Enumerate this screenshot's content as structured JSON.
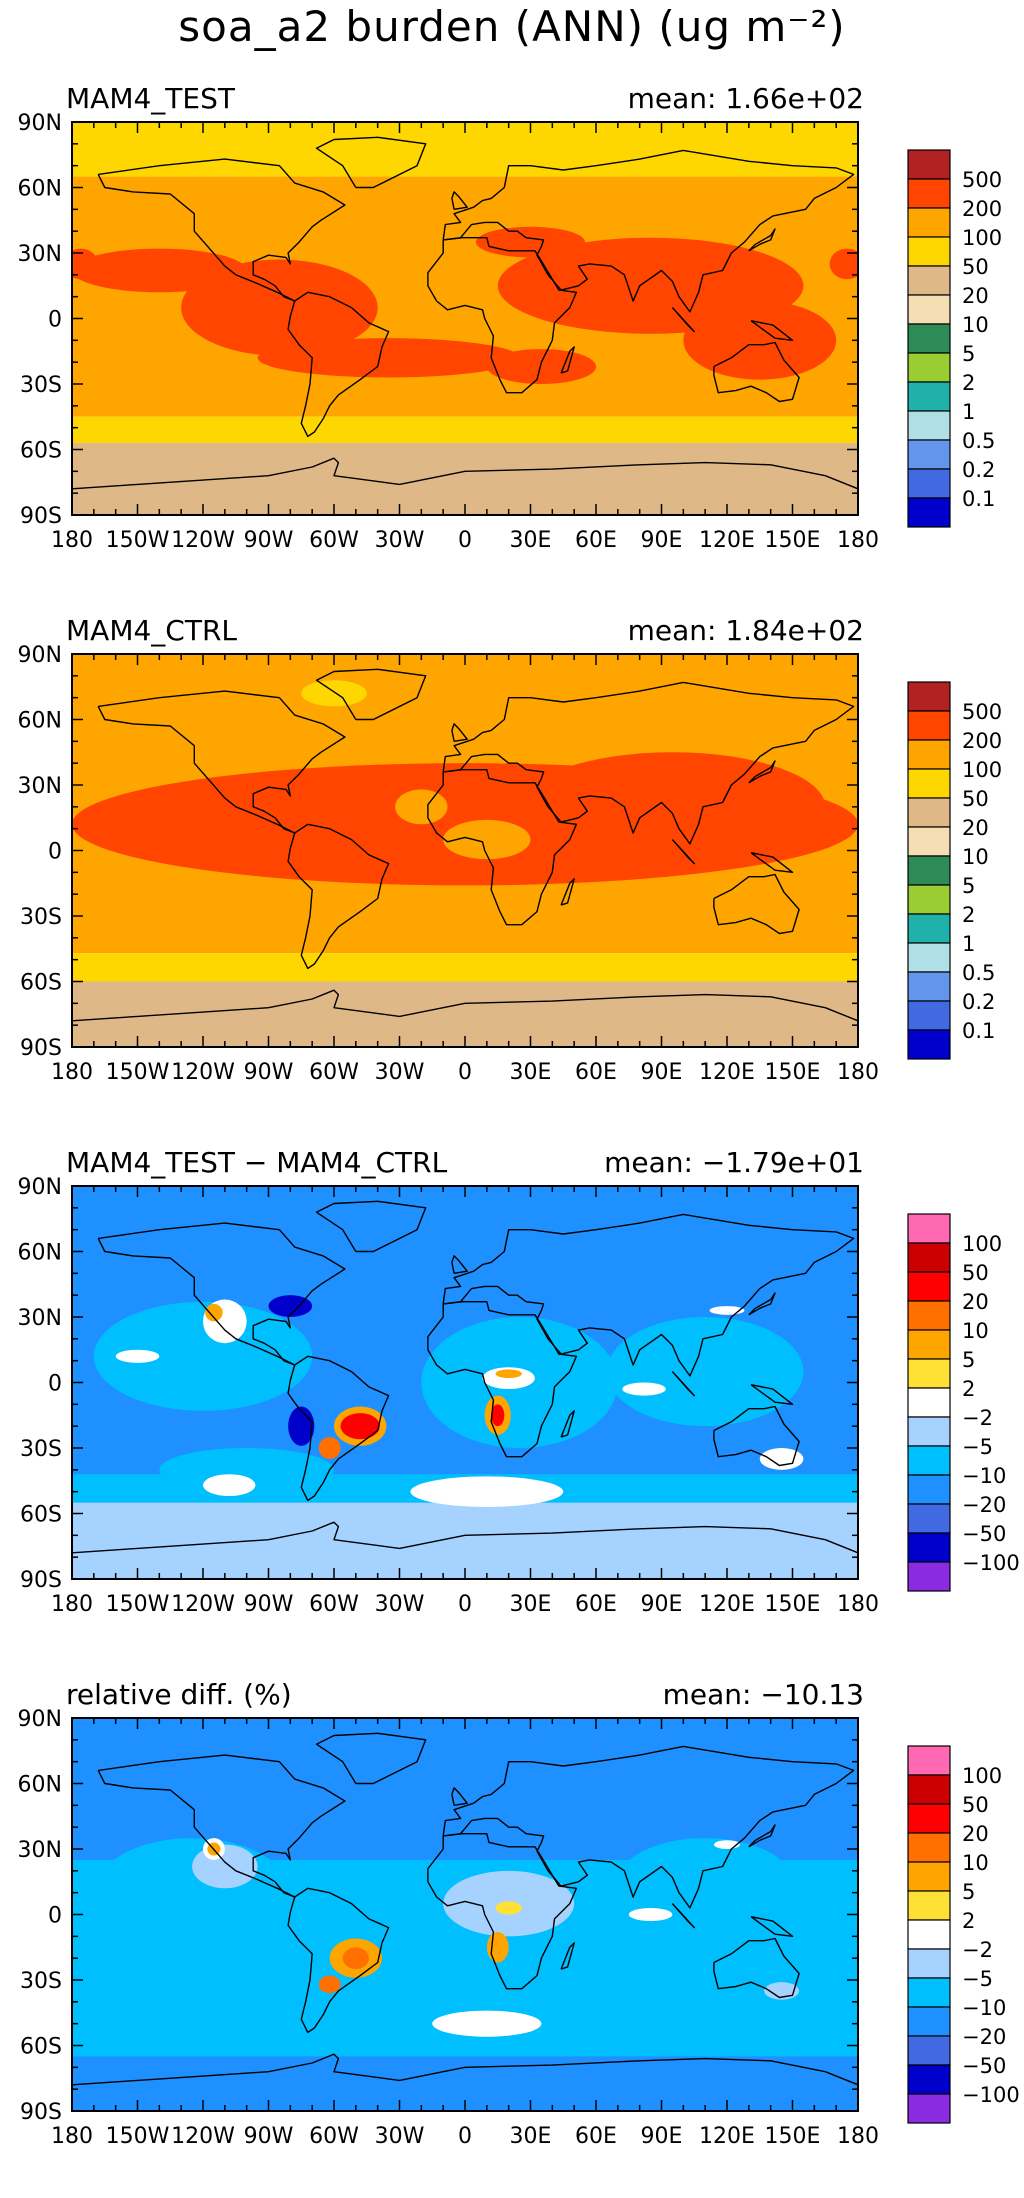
{
  "title": "soa_a2 burden (ANN) (ug m⁻²)",
  "axes": {
    "x_ticks": [
      "180",
      "150W",
      "120W",
      "90W",
      "60W",
      "30W",
      "0",
      "30E",
      "60E",
      "90E",
      "120E",
      "150E",
      "180"
    ],
    "y_ticks": [
      "90N",
      "60N",
      "30N",
      "0",
      "30S",
      "60S",
      "90S"
    ]
  },
  "chart_data": [
    {
      "type": "heatmap",
      "panel_title": "MAM4_TEST",
      "mean_label": "mean:  1.66e+02",
      "xlim": [
        -180,
        180
      ],
      "ylim": [
        -90,
        90
      ],
      "colorbar": {
        "labels": [
          "500",
          "200",
          "100",
          "50",
          "20",
          "10",
          "5",
          "2",
          "1",
          "0.5",
          "0.2",
          "0.1"
        ],
        "colors": [
          "#B22222",
          "#FF4500",
          "#FFA500",
          "#FFD700",
          "#DEB887",
          "#F5DEB3",
          "#2E8B57",
          "#9ACD32",
          "#20B2AA",
          "#B0E0E6",
          "#6495ED",
          "#4169E1",
          "#0000CD"
        ]
      },
      "bands": [
        {
          "lat": [
            65,
            90
          ],
          "color": "#FFD700"
        },
        {
          "lat": [
            -45,
            65
          ],
          "color": "#FFA500"
        },
        {
          "lat": [
            -57,
            -45
          ],
          "color": "#FFD700"
        },
        {
          "lat": [
            -90,
            -57
          ],
          "color": "#DEB887"
        }
      ],
      "regions": [
        {
          "lon": -85,
          "lat": 5,
          "rlon": 45,
          "rlat": 22,
          "color": "#FF4500"
        },
        {
          "lon": -140,
          "lat": 22,
          "rlon": 40,
          "rlat": 10,
          "color": "#FF4500"
        },
        {
          "lon": -35,
          "lat": -18,
          "rlon": 60,
          "rlat": 9,
          "color": "#FF4500"
        },
        {
          "lon": 85,
          "lat": 15,
          "rlon": 70,
          "rlat": 22,
          "color": "#FF4500"
        },
        {
          "lon": 135,
          "lat": -10,
          "rlon": 35,
          "rlat": 18,
          "color": "#FF4500"
        },
        {
          "lon": 35,
          "lat": -22,
          "rlon": 25,
          "rlat": 8,
          "color": "#FF4500"
        },
        {
          "lon": 30,
          "lat": 35,
          "rlon": 25,
          "rlat": 7,
          "color": "#FF4500"
        },
        {
          "lon": -176,
          "lat": 25,
          "rlon": 8,
          "rlat": 7,
          "color": "#FF4500"
        },
        {
          "lon": 175,
          "lat": 25,
          "rlon": 8,
          "rlat": 7,
          "color": "#FF4500"
        }
      ]
    },
    {
      "type": "heatmap",
      "panel_title": "MAM4_CTRL",
      "mean_label": "mean:  1.84e+02",
      "xlim": [
        -180,
        180
      ],
      "ylim": [
        -90,
        90
      ],
      "colorbar": {
        "labels": [
          "500",
          "200",
          "100",
          "50",
          "20",
          "10",
          "5",
          "2",
          "1",
          "0.5",
          "0.2",
          "0.1"
        ],
        "colors": [
          "#B22222",
          "#FF4500",
          "#FFA500",
          "#FFD700",
          "#DEB887",
          "#F5DEB3",
          "#2E8B57",
          "#9ACD32",
          "#20B2AA",
          "#B0E0E6",
          "#6495ED",
          "#4169E1",
          "#0000CD"
        ]
      },
      "bands": [
        {
          "lat": [
            -47,
            90
          ],
          "color": "#FFA500"
        },
        {
          "lat": [
            -60,
            -47
          ],
          "color": "#FFD700"
        },
        {
          "lat": [
            -90,
            -60
          ],
          "color": "#DEB887"
        }
      ],
      "regions": [
        {
          "lon": 0,
          "lat": 12,
          "rlon": 180,
          "rlat": 28,
          "color": "#FF4500"
        },
        {
          "lon": 95,
          "lat": 20,
          "rlon": 70,
          "rlat": 25,
          "color": "#FF4500"
        },
        {
          "lon": -60,
          "lat": 72,
          "rlon": 15,
          "rlat": 6,
          "color": "#FFD700"
        },
        {
          "lon": 10,
          "lat": 5,
          "rlon": 20,
          "rlat": 9,
          "color": "#FFA500"
        },
        {
          "lon": -20,
          "lat": 20,
          "rlon": 12,
          "rlat": 8,
          "color": "#FFA500"
        }
      ]
    },
    {
      "type": "heatmap",
      "panel_title": "MAM4_TEST − MAM4_CTRL",
      "mean_label": "mean: −1.79e+01",
      "xlim": [
        -180,
        180
      ],
      "ylim": [
        -90,
        90
      ],
      "colorbar": {
        "labels": [
          "100",
          "50",
          "20",
          "10",
          "5",
          "2",
          "−2",
          "−5",
          "−10",
          "−20",
          "−50",
          "−100"
        ],
        "colors": [
          "#FF69B4",
          "#CC0000",
          "#FF0000",
          "#FF7000",
          "#FFA500",
          "#FFE135",
          "#FFFFFF",
          "#A6D2FF",
          "#00BFFF",
          "#1E90FF",
          "#4169E1",
          "#0000CD",
          "#8A2BE2"
        ]
      },
      "bands": [
        {
          "lat": [
            -90,
            90
          ],
          "color": "#1E90FF"
        },
        {
          "lat": [
            -90,
            -55
          ],
          "color": "#A6D2FF"
        },
        {
          "lat": [
            -55,
            -42
          ],
          "color": "#00BFFF"
        }
      ],
      "regions": [
        {
          "lon": -120,
          "lat": 12,
          "rlon": 50,
          "rlat": 25,
          "color": "#00BFFF"
        },
        {
          "lon": 25,
          "lat": 0,
          "rlon": 45,
          "rlat": 30,
          "color": "#00BFFF"
        },
        {
          "lon": 110,
          "lat": 5,
          "rlon": 45,
          "rlat": 25,
          "color": "#00BFFF"
        },
        {
          "lon": -100,
          "lat": -40,
          "rlon": 40,
          "rlat": 10,
          "color": "#00BFFF"
        },
        {
          "lon": 10,
          "lat": -50,
          "rlon": 35,
          "rlat": 7,
          "color": "#FFFFFF"
        },
        {
          "lon": -108,
          "lat": -47,
          "rlon": 12,
          "rlat": 5,
          "color": "#FFFFFF"
        },
        {
          "lon": -110,
          "lat": 28,
          "rlon": 10,
          "rlat": 10,
          "color": "#FFFFFF"
        },
        {
          "lon": -115,
          "lat": 32,
          "rlon": 4,
          "rlat": 4,
          "color": "#FFA500"
        },
        {
          "lon": -80,
          "lat": 35,
          "rlon": 10,
          "rlat": 5,
          "color": "#0000CD"
        },
        {
          "lon": -75,
          "lat": -20,
          "rlon": 6,
          "rlat": 9,
          "color": "#0000CD"
        },
        {
          "lon": -48,
          "lat": -20,
          "rlon": 12,
          "rlat": 9,
          "color": "#FFA500"
        },
        {
          "lon": -48,
          "lat": -20,
          "rlon": 9,
          "rlat": 6,
          "color": "#FF0000"
        },
        {
          "lon": -62,
          "lat": -30,
          "rlon": 5,
          "rlat": 5,
          "color": "#FF7000"
        },
        {
          "lon": 15,
          "lat": -15,
          "rlon": 6,
          "rlat": 9,
          "color": "#FFA500"
        },
        {
          "lon": 15,
          "lat": -15,
          "rlon": 3,
          "rlat": 5,
          "color": "#FF0000"
        },
        {
          "lon": 20,
          "lat": 2,
          "rlon": 12,
          "rlat": 5,
          "color": "#FFFFFF"
        },
        {
          "lon": 20,
          "lat": 4,
          "rlon": 6,
          "rlat": 2,
          "color": "#FFA500"
        },
        {
          "lon": 82,
          "lat": -3,
          "rlon": 10,
          "rlat": 3,
          "color": "#FFFFFF"
        },
        {
          "lon": 145,
          "lat": -35,
          "rlon": 10,
          "rlat": 5,
          "color": "#FFFFFF"
        },
        {
          "lon": 120,
          "lat": 33,
          "rlon": 8,
          "rlat": 2,
          "color": "#FFFFFF"
        },
        {
          "lon": -150,
          "lat": 12,
          "rlon": 10,
          "rlat": 3,
          "color": "#FFFFFF"
        }
      ]
    },
    {
      "type": "heatmap",
      "panel_title": "relative diff. (%)",
      "mean_label": "mean: −10.13",
      "xlim": [
        -180,
        180
      ],
      "ylim": [
        -90,
        90
      ],
      "colorbar": {
        "labels": [
          "100",
          "50",
          "20",
          "10",
          "5",
          "2",
          "−2",
          "−5",
          "−10",
          "−20",
          "−50",
          "−100"
        ],
        "colors": [
          "#FF69B4",
          "#CC0000",
          "#FF0000",
          "#FF7000",
          "#FFA500",
          "#FFE135",
          "#FFFFFF",
          "#A6D2FF",
          "#00BFFF",
          "#1E90FF",
          "#4169E1",
          "#0000CD",
          "#8A2BE2"
        ]
      },
      "bands": [
        {
          "lat": [
            -90,
            90
          ],
          "color": "#1E90FF"
        },
        {
          "lat": [
            -65,
            25
          ],
          "color": "#00BFFF"
        }
      ],
      "regions": [
        {
          "lon": -125,
          "lat": 10,
          "rlon": 45,
          "rlat": 25,
          "color": "#00BFFF"
        },
        {
          "lon": 110,
          "lat": 15,
          "rlon": 40,
          "rlat": 20,
          "color": "#00BFFF"
        },
        {
          "lon": -110,
          "lat": 22,
          "rlon": 15,
          "rlat": 10,
          "color": "#A6D2FF"
        },
        {
          "lon": 20,
          "lat": 5,
          "rlon": 30,
          "rlat": 15,
          "color": "#A6D2FF"
        },
        {
          "lon": 10,
          "lat": -50,
          "rlon": 25,
          "rlat": 6,
          "color": "#FFFFFF"
        },
        {
          "lon": -115,
          "lat": 30,
          "rlon": 5,
          "rlat": 5,
          "color": "#FFFFFF"
        },
        {
          "lon": -115,
          "lat": 30,
          "rlon": 3,
          "rlat": 3,
          "color": "#FFA500"
        },
        {
          "lon": -50,
          "lat": -20,
          "rlon": 12,
          "rlat": 9,
          "color": "#FFA500"
        },
        {
          "lon": -50,
          "lat": -20,
          "rlon": 6,
          "rlat": 5,
          "color": "#FF7000"
        },
        {
          "lon": -62,
          "lat": -32,
          "rlon": 5,
          "rlat": 4,
          "color": "#FF7000"
        },
        {
          "lon": 15,
          "lat": -15,
          "rlon": 5,
          "rlat": 7,
          "color": "#FFA500"
        },
        {
          "lon": 20,
          "lat": 3,
          "rlon": 6,
          "rlat": 3,
          "color": "#FFE135"
        },
        {
          "lon": 85,
          "lat": 0,
          "rlon": 10,
          "rlat": 3,
          "color": "#FFFFFF"
        },
        {
          "lon": 145,
          "lat": -35,
          "rlon": 8,
          "rlat": 4,
          "color": "#A6D2FF"
        },
        {
          "lon": 120,
          "lat": 32,
          "rlon": 6,
          "rlat": 2,
          "color": "#FFFFFF"
        }
      ]
    }
  ]
}
